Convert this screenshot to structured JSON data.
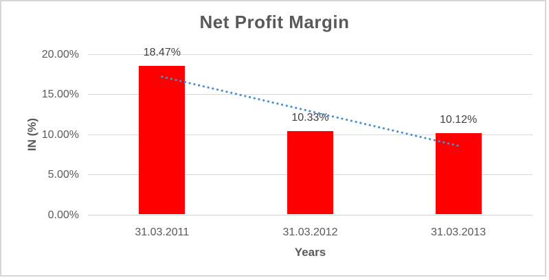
{
  "chart": {
    "title": "Net Profit Margin",
    "y_axis_title": "IN (%)",
    "x_axis_title": "Years"
  },
  "chart_data": {
    "type": "bar",
    "title": "Net Profit Margin",
    "xlabel": "Years",
    "ylabel": "IN (%)",
    "categories": [
      "31.03.2011",
      "31.03.2012",
      "31.03.2013"
    ],
    "values": [
      18.47,
      10.33,
      10.12
    ],
    "data_labels": [
      "18.47%",
      "10.33%",
      "10.12%"
    ],
    "y_ticks": [
      {
        "value": 20,
        "label": "20.00%"
      },
      {
        "value": 15,
        "label": "15.00%"
      },
      {
        "value": 10,
        "label": "10.00%"
      },
      {
        "value": 5,
        "label": "5.00%"
      },
      {
        "value": 0,
        "label": "0.00%"
      }
    ],
    "ylim": [
      0,
      20
    ],
    "grid": true,
    "legend": false,
    "trendline": {
      "style": "dotted",
      "color": "#4a90d5",
      "start_value": 17.2,
      "end_value": 8.6
    },
    "colors": {
      "bar": "#ff0000",
      "trendline": "#4a90d5",
      "gridline": "#d9d9d9",
      "axis_text": "#595959",
      "data_label_text": "#404040",
      "frame_border": "#d6d6d6"
    }
  }
}
